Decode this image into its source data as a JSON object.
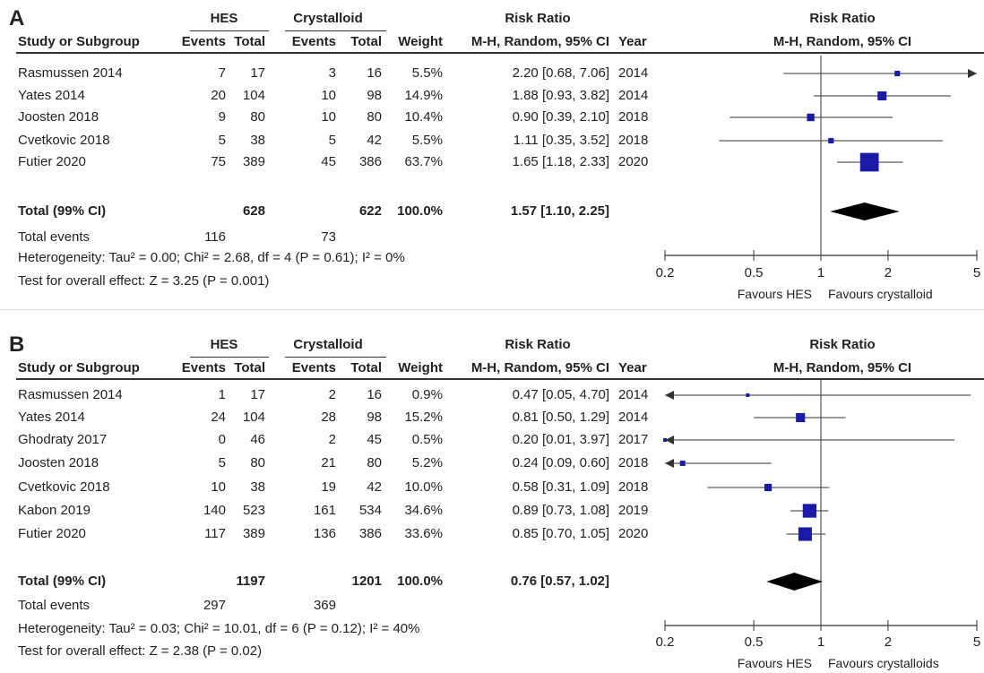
{
  "panels": [
    {
      "letter": "A",
      "hdr": {
        "group1": "HES",
        "group2": "Crystalloid",
        "rr_title": "Risk Ratio",
        "rr_method": "M-H, Random, 95% CI",
        "study": "Study or Subgroup",
        "events": "Events",
        "total": "Total",
        "weight": "Weight",
        "year": "Year",
        "plot_title": "Risk Ratio",
        "plot_method": "M-H, Random, 95% CI"
      },
      "rows": [
        {
          "study": "Rasmussen 2014",
          "e1": "7",
          "n1": "17",
          "e2": "3",
          "n2": "16",
          "w": "5.5%",
          "ci": "2.20 [0.68, 7.06]",
          "year": "2014"
        },
        {
          "study": "Yates 2014",
          "e1": "20",
          "n1": "104",
          "e2": "10",
          "n2": "98",
          "w": "14.9%",
          "ci": "1.88 [0.93, 3.82]",
          "year": "2014"
        },
        {
          "study": "Joosten 2018",
          "e1": "9",
          "n1": "80",
          "e2": "10",
          "n2": "80",
          "w": "10.4%",
          "ci": "0.90 [0.39, 2.10]",
          "year": "2018"
        },
        {
          "study": "Cvetkovic 2018",
          "e1": "5",
          "n1": "38",
          "e2": "5",
          "n2": "42",
          "w": "5.5%",
          "ci": "1.11 [0.35, 3.52]",
          "year": "2018"
        },
        {
          "study": "Futier 2020",
          "e1": "75",
          "n1": "389",
          "e2": "45",
          "n2": "386",
          "w": "63.7%",
          "ci": "1.65 [1.18, 2.33]",
          "year": "2020"
        }
      ],
      "total": {
        "label": "Total (99% CI)",
        "n1": "628",
        "n2": "622",
        "w": "100.0%",
        "ci": "1.57 [1.10, 2.25]"
      },
      "events": {
        "label": "Total events",
        "e1": "116",
        "e2": "73"
      },
      "heterogeneity": "Heterogeneity: Tau² = 0.00; Chi² = 2.68, df = 4 (P = 0.61); I² = 0%",
      "overall": "Test for overall effect: Z = 3.25 (P = 0.001)",
      "axis": {
        "ticks": [
          "0.2",
          "0.5",
          "1",
          "2",
          "5"
        ],
        "left": "Favours HES",
        "right": "Favours crystalloid"
      }
    },
    {
      "letter": "B",
      "hdr": {
        "group1": "HES",
        "group2": "Crystalloid",
        "rr_title": "Risk Ratio",
        "rr_method": "M-H, Random, 95% CI",
        "study": "Study or Subgroup",
        "events": "Events",
        "total": "Total",
        "weight": "Weight",
        "year": "Year",
        "plot_title": "Risk Ratio",
        "plot_method": "M-H, Random, 95% CI"
      },
      "rows": [
        {
          "study": "Rasmussen 2014",
          "e1": "1",
          "n1": "17",
          "e2": "2",
          "n2": "16",
          "w": "0.9%",
          "ci": "0.47 [0.05, 4.70]",
          "year": "2014"
        },
        {
          "study": "Yates 2014",
          "e1": "24",
          "n1": "104",
          "e2": "28",
          "n2": "98",
          "w": "15.2%",
          "ci": "0.81 [0.50, 1.29]",
          "year": "2014"
        },
        {
          "study": "Ghodraty 2017",
          "e1": "0",
          "n1": "46",
          "e2": "2",
          "n2": "45",
          "w": "0.5%",
          "ci": "0.20 [0.01, 3.97]",
          "year": "2017"
        },
        {
          "study": "Joosten 2018",
          "e1": "5",
          "n1": "80",
          "e2": "21",
          "n2": "80",
          "w": "5.2%",
          "ci": "0.24 [0.09, 0.60]",
          "year": "2018"
        },
        {
          "study": "Cvetkovic 2018",
          "e1": "10",
          "n1": "38",
          "e2": "19",
          "n2": "42",
          "w": "10.0%",
          "ci": "0.58 [0.31, 1.09]",
          "year": "2018"
        },
        {
          "study": "Kabon 2019",
          "e1": "140",
          "n1": "523",
          "e2": "161",
          "n2": "534",
          "w": "34.6%",
          "ci": "0.89 [0.73, 1.08]",
          "year": "2019"
        },
        {
          "study": "Futier 2020",
          "e1": "117",
          "n1": "389",
          "e2": "136",
          "n2": "386",
          "w": "33.6%",
          "ci": "0.85 [0.70, 1.05]",
          "year": "2020"
        }
      ],
      "total": {
        "label": "Total (99% CI)",
        "n1": "1197",
        "n2": "1201",
        "w": "100.0%",
        "ci": "0.76 [0.57, 1.02]"
      },
      "events": {
        "label": "Total events",
        "e1": "297",
        "e2": "369"
      },
      "heterogeneity": "Heterogeneity: Tau² = 0.03; Chi² = 10.01, df = 6 (P = 0.12); I² = 40%",
      "overall": "Test for overall effect: Z = 2.38 (P = 0.02)",
      "axis": {
        "ticks": [
          "0.2",
          "0.5",
          "1",
          "2",
          "5"
        ],
        "left": "Favours HES",
        "right": "Favours crystalloids"
      }
    }
  ],
  "chart_data": [
    {
      "type": "forest",
      "scale": "log",
      "xlim": [
        0.2,
        5
      ],
      "xticks": [
        0.2,
        0.5,
        1,
        2,
        5
      ],
      "reference_line": 1,
      "marker_color": "#1a1aa6",
      "studies": [
        {
          "name": "Rasmussen 2014",
          "rr": 2.2,
          "lo": 0.68,
          "hi": 7.06,
          "weight": 5.5
        },
        {
          "name": "Yates 2014",
          "rr": 1.88,
          "lo": 0.93,
          "hi": 3.82,
          "weight": 14.9
        },
        {
          "name": "Joosten 2018",
          "rr": 0.9,
          "lo": 0.39,
          "hi": 2.1,
          "weight": 10.4
        },
        {
          "name": "Cvetkovic 2018",
          "rr": 1.11,
          "lo": 0.35,
          "hi": 3.52,
          "weight": 5.5
        },
        {
          "name": "Futier 2020",
          "rr": 1.65,
          "lo": 1.18,
          "hi": 2.33,
          "weight": 63.7
        }
      ],
      "pooled": {
        "rr": 1.57,
        "lo": 1.1,
        "hi": 2.25
      }
    },
    {
      "type": "forest",
      "scale": "log",
      "xlim": [
        0.2,
        5
      ],
      "xticks": [
        0.2,
        0.5,
        1,
        2,
        5
      ],
      "reference_line": 1,
      "marker_color": "#1a1aa6",
      "studies": [
        {
          "name": "Rasmussen 2014",
          "rr": 0.47,
          "lo": 0.05,
          "hi": 4.7,
          "weight": 0.9
        },
        {
          "name": "Yates 2014",
          "rr": 0.81,
          "lo": 0.5,
          "hi": 1.29,
          "weight": 15.2
        },
        {
          "name": "Ghodraty 2017",
          "rr": 0.2,
          "lo": 0.01,
          "hi": 3.97,
          "weight": 0.5
        },
        {
          "name": "Joosten 2018",
          "rr": 0.24,
          "lo": 0.09,
          "hi": 0.6,
          "weight": 5.2
        },
        {
          "name": "Cvetkovic 2018",
          "rr": 0.58,
          "lo": 0.31,
          "hi": 1.09,
          "weight": 10.0
        },
        {
          "name": "Kabon 2019",
          "rr": 0.89,
          "lo": 0.73,
          "hi": 1.08,
          "weight": 34.6
        },
        {
          "name": "Futier 2020",
          "rr": 0.85,
          "lo": 0.7,
          "hi": 1.05,
          "weight": 33.6
        }
      ],
      "pooled": {
        "rr": 0.76,
        "lo": 0.57,
        "hi": 1.02
      }
    }
  ]
}
